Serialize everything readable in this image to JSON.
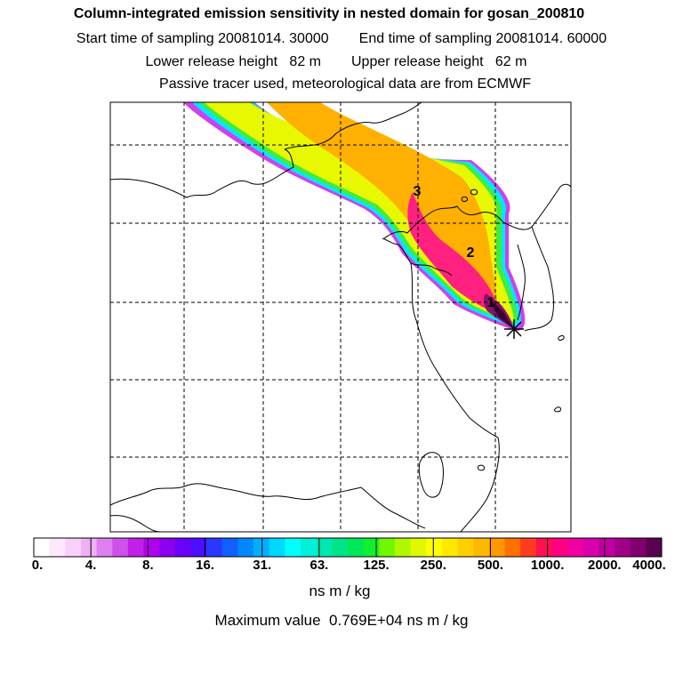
{
  "header": {
    "title": "Column-integrated emission sensitivity in nested domain for gosan_200810",
    "start_label": "Start time of sampling",
    "start_value": "20081014. 30000",
    "end_label": "End time of sampling",
    "end_value": "20081014. 60000",
    "lower_label": "Lower release height",
    "lower_value": "82 m",
    "upper_label": "Upper release height",
    "upper_value": "62 m",
    "tracer_line": "Passive tracer used, meteorological data are from ECMWF"
  },
  "map": {
    "markers": [
      {
        "label": "1"
      },
      {
        "label": "2"
      },
      {
        "label": "3"
      }
    ],
    "release_site_icon": "asterisk-icon"
  },
  "colorbar": {
    "tick_labels": [
      "0.",
      "4.",
      "8.",
      "16.",
      "31.",
      "63.",
      "125.",
      "250.",
      "500.",
      "1000.",
      "2000.",
      "4000."
    ],
    "colors": [
      "#ffffff",
      "#fde8fd",
      "#f8d0fa",
      "#f0b0f6",
      "#e080f0",
      "#d050ec",
      "#c020e8",
      "#b000ee",
      "#8c00f0",
      "#6a00f8",
      "#4a10ff",
      "#2838ff",
      "#1060ff",
      "#0088ff",
      "#00b0ff",
      "#00d8ff",
      "#00ffff",
      "#00f0d8",
      "#00e8b0",
      "#00e488",
      "#00e858",
      "#10f030",
      "#70f800",
      "#b0f800",
      "#e0f800",
      "#ffff00",
      "#ffe800",
      "#ffd000",
      "#ffb800",
      "#ff9800",
      "#ff7000",
      "#ff3c20",
      "#ff1050",
      "#ff0080",
      "#f000a0",
      "#d800a8",
      "#c000a0",
      "#a00088",
      "#800070",
      "#5a0050"
    ],
    "unit": "ns m / kg",
    "max_label": "Maximum value",
    "max_value": "0.769E+04",
    "max_unit": "ns m / kg"
  }
}
